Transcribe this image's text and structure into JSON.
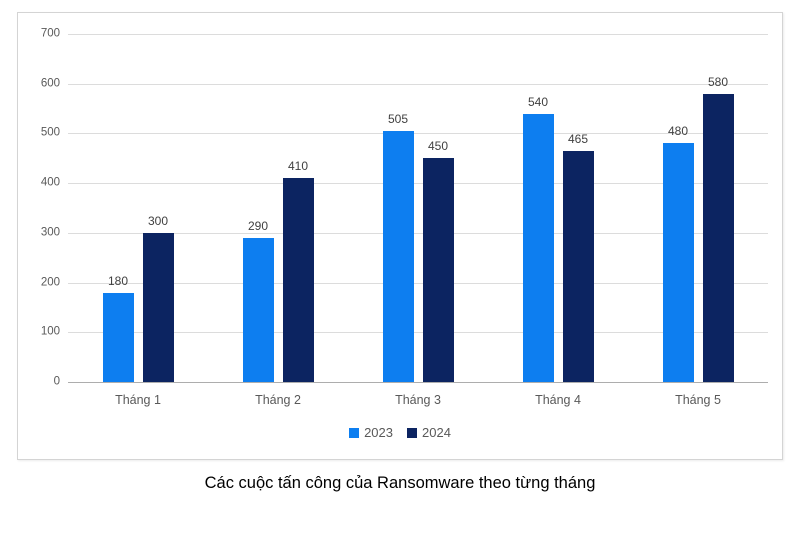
{
  "chart_data": {
    "type": "bar",
    "title": "Các cuộc tấn công của Ransomware theo từng tháng",
    "categories": [
      "Tháng 1",
      "Tháng 2",
      "Tháng 3",
      "Tháng 4",
      "Tháng 5"
    ],
    "series": [
      {
        "name": "2023",
        "color": "#0d7ef0",
        "values": [
          180,
          290,
          505,
          540,
          480
        ]
      },
      {
        "name": "2024",
        "color": "#0c2461",
        "values": [
          300,
          410,
          450,
          465,
          580
        ]
      }
    ],
    "xlabel": "",
    "ylabel": "",
    "ylim": [
      0,
      700
    ],
    "yticks": [
      0,
      100,
      200,
      300,
      400,
      500,
      600,
      700
    ],
    "grid": true,
    "data_labels": true,
    "legend_position": "bottom"
  },
  "colors": {
    "grid": "#dcdcdc",
    "axis_baseline": "#adadad",
    "tick_text": "#595959",
    "value_label_text": "#404040",
    "frame_border": "#d4d4d4",
    "background": "#ffffff"
  }
}
